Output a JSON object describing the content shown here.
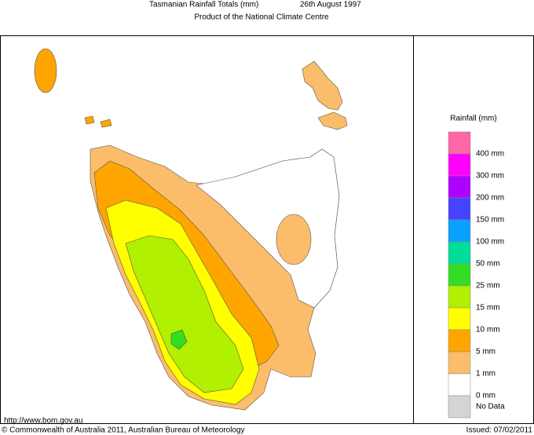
{
  "header": {
    "title": "Tasmanian Rainfall Totals (mm)",
    "date": "26th August 1997",
    "subtitle": "Product of the National Climate Centre"
  },
  "legend": {
    "title": "Rainfall (mm)",
    "colors": [
      "#ff66a8",
      "#ff00ff",
      "#b000ff",
      "#4444ff",
      "#0aa0ff",
      "#00dd99",
      "#33dd22",
      "#b0f000",
      "#ffff00",
      "#ffa500",
      "#fbbd6a",
      "#ffffff",
      "#d4d4d4"
    ],
    "labels": [
      "400 mm",
      "300 mm",
      "200 mm",
      "150 mm",
      "100 mm",
      "50 mm",
      "25 mm",
      "15 mm",
      "10 mm",
      "5 mm",
      "1 mm",
      "0 mm"
    ],
    "no_data_label": "No Data"
  },
  "footer": {
    "url": "http://www.bom.gov.au",
    "copyright": "© Commonwealth of Australia 2011, Australian Bureau of Meteorology",
    "issued": "Issued: 07/02/2011"
  }
}
